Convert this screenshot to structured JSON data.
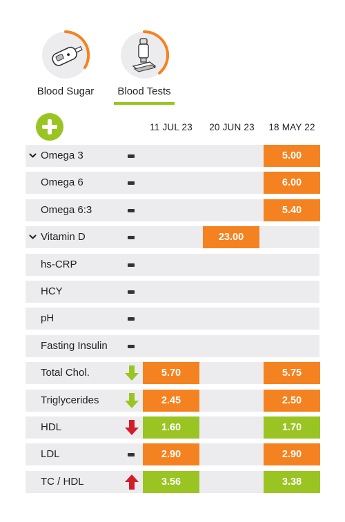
{
  "colors": {
    "accent": "#9ac422",
    "orange": "#f58220",
    "red": "#d31d2a",
    "row_bg": "#ececee"
  },
  "tabs": [
    {
      "label": "Blood Sugar",
      "icon": "glucometer-icon",
      "active": false
    },
    {
      "label": "Blood Tests",
      "icon": "microscope-icon",
      "active": true
    }
  ],
  "add_button": {
    "icon": "plus-icon"
  },
  "columns": [
    "11 JUL 23",
    "20 JUN 23",
    "18 MAY 22"
  ],
  "rows": [
    {
      "label": "Omega 3",
      "expand": true,
      "trend": "none",
      "values": [
        "",
        "",
        "5.00"
      ],
      "colors": [
        "",
        "",
        "orange"
      ]
    },
    {
      "label": "Omega 6",
      "expand": false,
      "trend": "none",
      "values": [
        "",
        "",
        "6.00"
      ],
      "colors": [
        "",
        "",
        "orange"
      ]
    },
    {
      "label": "Omega 6:3",
      "expand": false,
      "trend": "none",
      "values": [
        "",
        "",
        "5.40"
      ],
      "colors": [
        "",
        "",
        "orange"
      ]
    },
    {
      "label": "Vitamin D",
      "expand": true,
      "trend": "none",
      "values": [
        "",
        "23.00",
        ""
      ],
      "colors": [
        "",
        "orange",
        ""
      ]
    },
    {
      "label": "hs-CRP",
      "expand": false,
      "trend": "none",
      "values": [
        "",
        "",
        ""
      ],
      "colors": [
        "",
        "",
        ""
      ]
    },
    {
      "label": "HCY",
      "expand": false,
      "trend": "none",
      "values": [
        "",
        "",
        ""
      ],
      "colors": [
        "",
        "",
        ""
      ]
    },
    {
      "label": "pH",
      "expand": false,
      "trend": "none",
      "values": [
        "",
        "",
        ""
      ],
      "colors": [
        "",
        "",
        ""
      ]
    },
    {
      "label": "Fasting Insulin",
      "expand": false,
      "trend": "none",
      "values": [
        "",
        "",
        ""
      ],
      "colors": [
        "",
        "",
        ""
      ]
    },
    {
      "label": "Total Chol.",
      "expand": false,
      "trend": "down-good",
      "values": [
        "5.70",
        "",
        "5.75"
      ],
      "colors": [
        "orange",
        "",
        "orange"
      ]
    },
    {
      "label": "Triglycerides",
      "expand": false,
      "trend": "down-good",
      "values": [
        "2.45",
        "",
        "2.50"
      ],
      "colors": [
        "orange",
        "",
        "orange"
      ]
    },
    {
      "label": "HDL",
      "expand": false,
      "trend": "down-bad",
      "values": [
        "1.60",
        "",
        "1.70"
      ],
      "colors": [
        "green",
        "",
        "green"
      ]
    },
    {
      "label": "LDL",
      "expand": false,
      "trend": "none",
      "values": [
        "2.90",
        "",
        "2.90"
      ],
      "colors": [
        "orange",
        "",
        "orange"
      ]
    },
    {
      "label": "TC / HDL",
      "expand": false,
      "trend": "up-bad",
      "values": [
        "3.56",
        "",
        "3.38"
      ],
      "colors": [
        "green",
        "",
        "green"
      ]
    }
  ]
}
